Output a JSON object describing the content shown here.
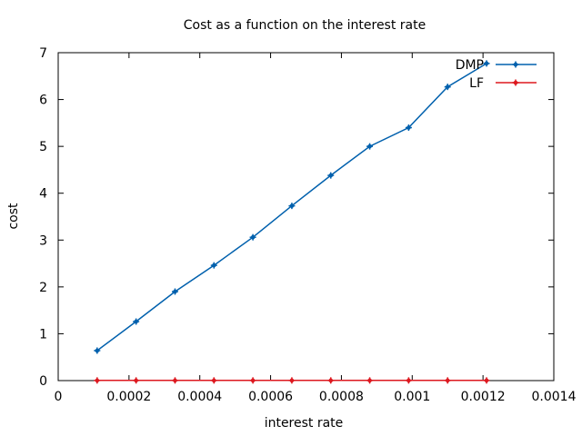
{
  "chart_data": {
    "type": "line",
    "title": "Cost as a function on the interest rate",
    "xlabel": "interest rate",
    "ylabel": "cost",
    "xlim": [
      0,
      0.0014
    ],
    "ylim": [
      0,
      7
    ],
    "x_ticks": [
      0,
      0.0002,
      0.0004,
      0.0006,
      0.0008,
      0.001,
      0.0012,
      0.0014
    ],
    "x_tick_labels": [
      "0",
      "0.0002",
      "0.0004",
      "0.0006",
      "0.0008",
      "0.001",
      "0.0012",
      "0.0014"
    ],
    "y_ticks": [
      0,
      1,
      2,
      3,
      4,
      5,
      6,
      7
    ],
    "y_tick_labels": [
      "0",
      "1",
      "2",
      "3",
      "4",
      "5",
      "6",
      "7"
    ],
    "legend_position": "top-right",
    "grid": false,
    "series": [
      {
        "name": "DMP",
        "color": "#0060ad",
        "x": [
          0.00011,
          0.00022,
          0.00033,
          0.00044,
          0.00055,
          0.00066,
          0.00077,
          0.00088,
          0.00099,
          0.0011,
          0.00121
        ],
        "y": [
          0.64,
          1.26,
          1.9,
          2.46,
          3.06,
          3.73,
          4.38,
          5.0,
          5.4,
          6.27,
          6.77
        ]
      },
      {
        "name": "LF",
        "color": "#dd181f",
        "x": [
          0.00011,
          0.00022,
          0.00033,
          0.00044,
          0.00055,
          0.00066,
          0.00077,
          0.00088,
          0.00099,
          0.0011,
          0.00121
        ],
        "y": [
          0.003,
          0.003,
          0.003,
          0.003,
          0.003,
          0.003,
          0.003,
          0.003,
          0.003,
          0.003,
          0.003
        ]
      }
    ]
  }
}
